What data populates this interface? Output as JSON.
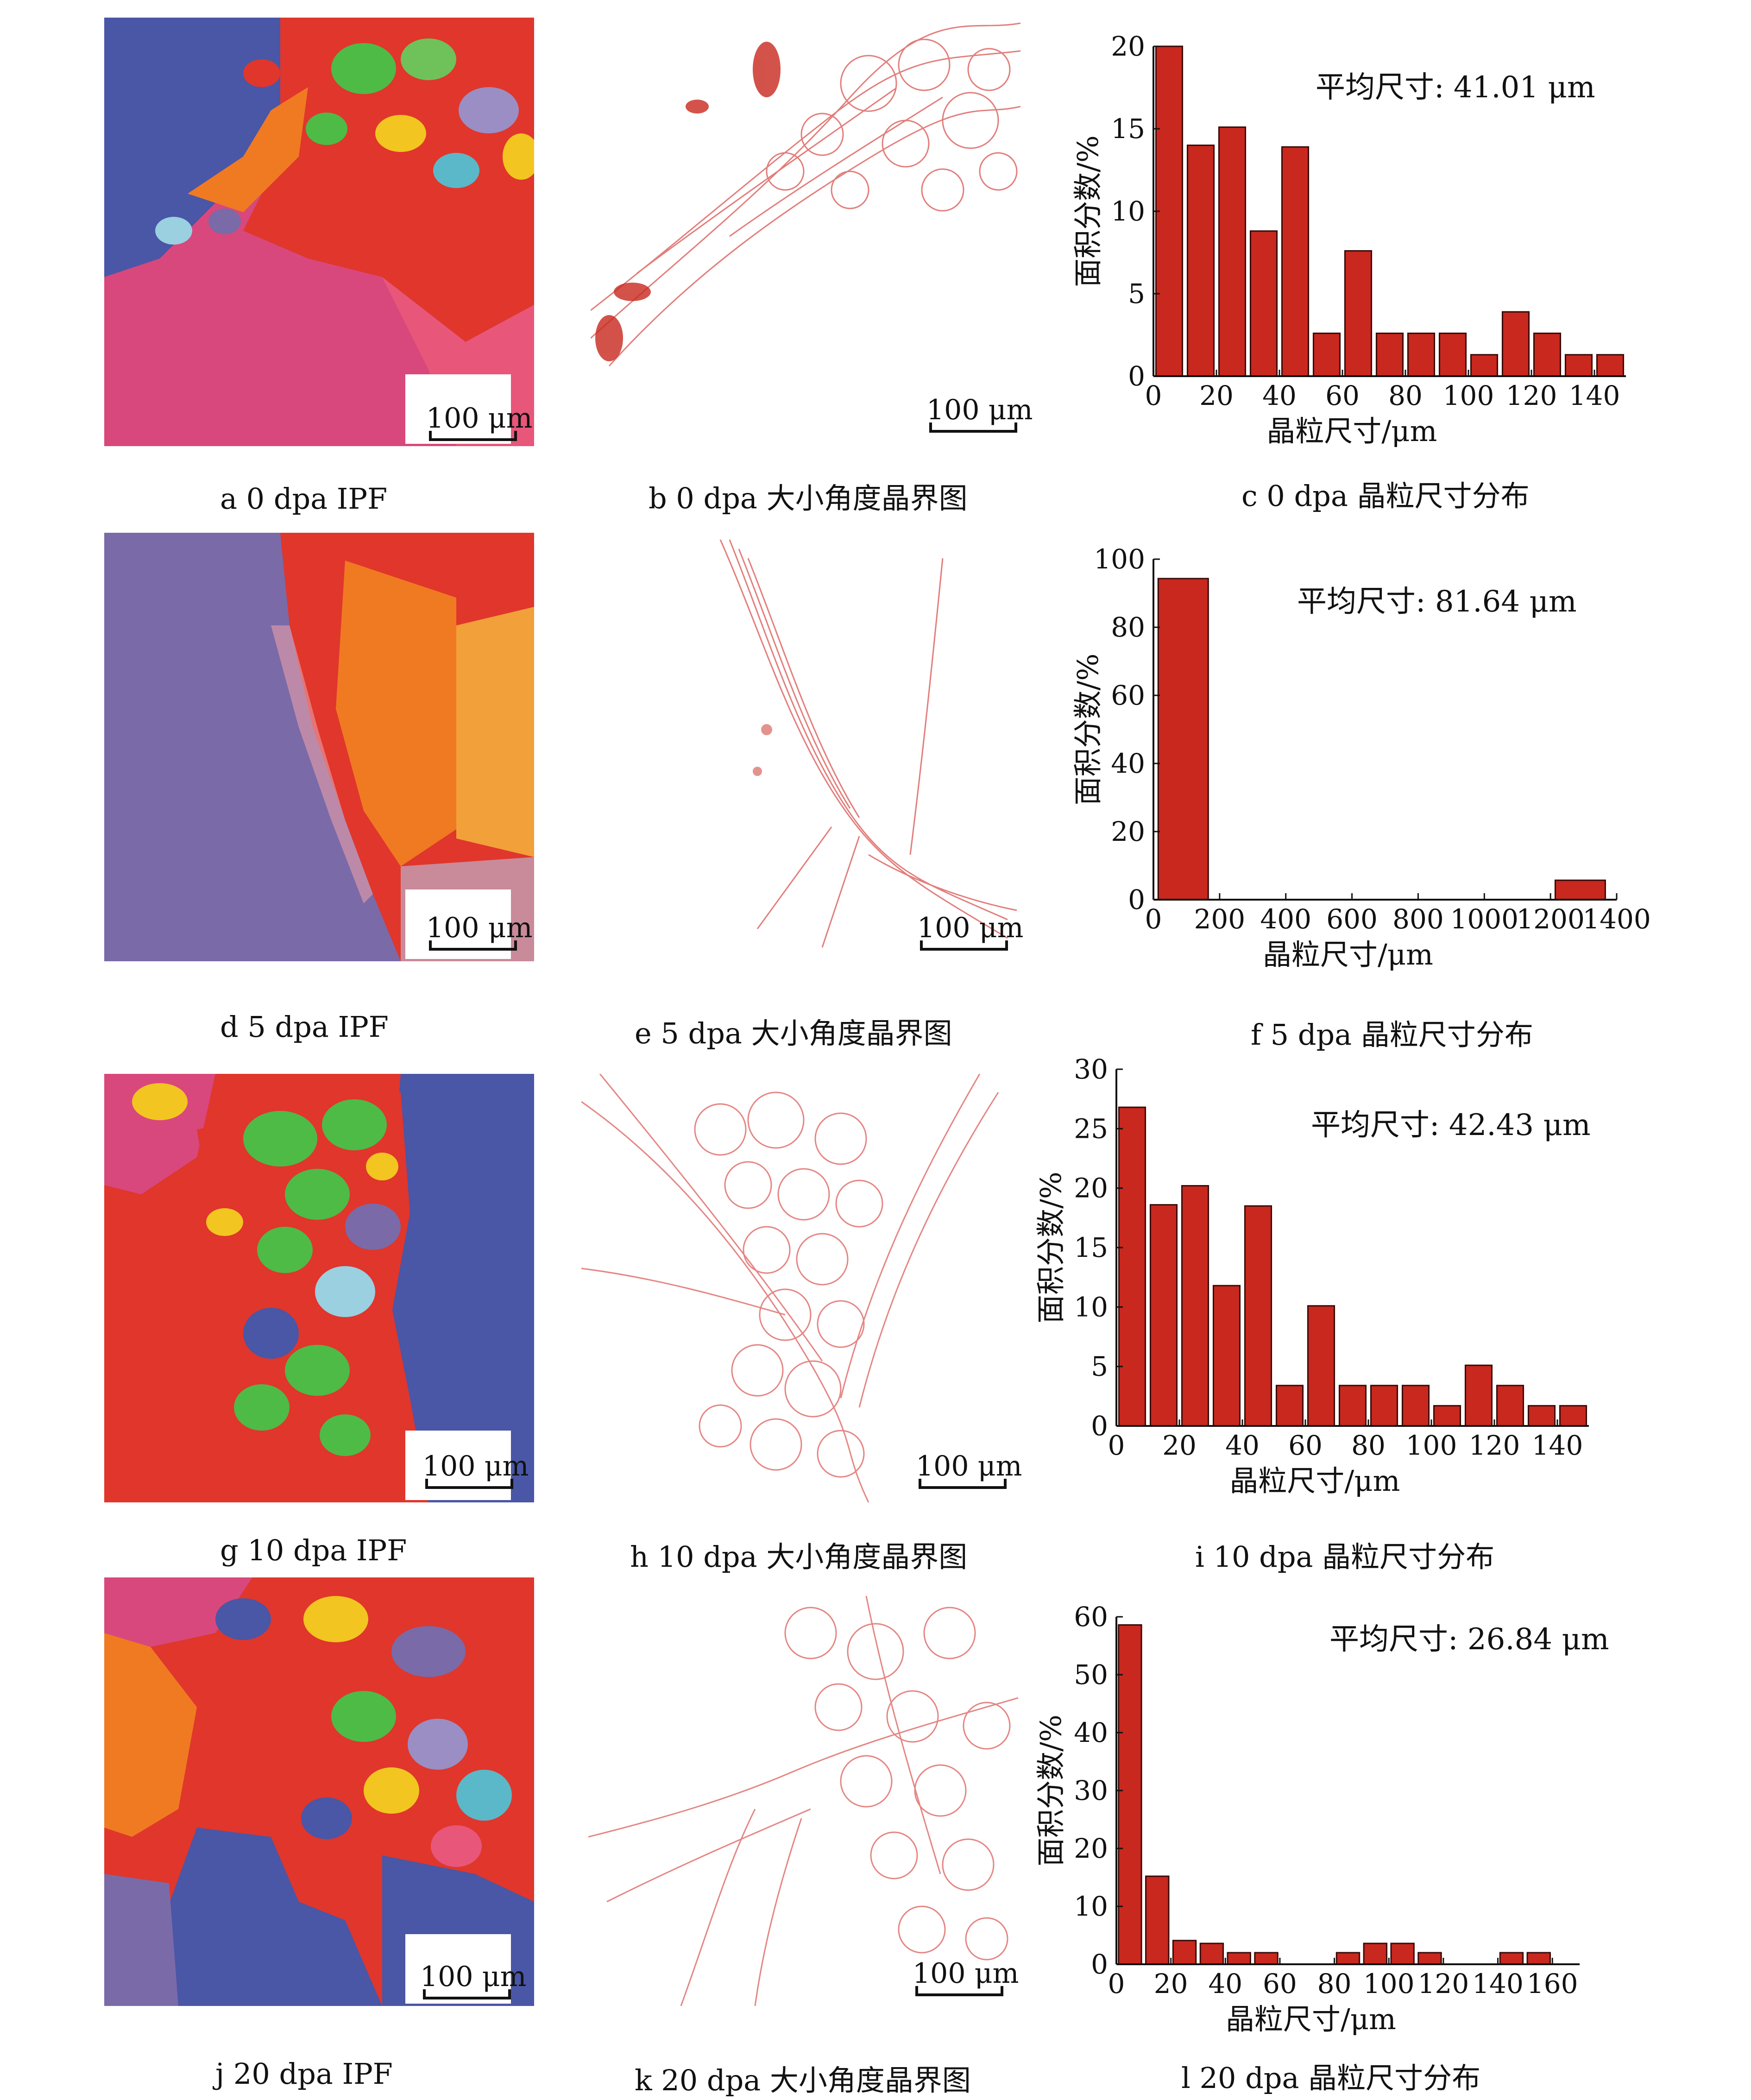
{
  "captions": {
    "a": "a  0 dpa IPF",
    "b": "b  0 dpa 大小角度晶界图",
    "c": "c  0 dpa 晶粒尺寸分布",
    "d": "d  5 dpa IPF",
    "e": "e  5 dpa 大小角度晶界图",
    "f": "f  5 dpa 晶粒尺寸分布",
    "g": "g  10 dpa IPF",
    "h": "h  10 dpa 大小角度晶界图",
    "i": "i  10 dpa 晶粒尺寸分布",
    "j": "j  20 dpa IPF",
    "k": "k  20 dpa 大小角度晶界图",
    "l": "l  20 dpa 晶粒尺寸分布"
  },
  "scale_label": "100 μm",
  "colors": {
    "bar_fill": "#c8281e",
    "bar_stroke": "#3a0a08",
    "gb_line": "#d9534f",
    "ipf_red": "#e0362c",
    "ipf_pink": "#d8487c",
    "ipf_blue": "#4a56a6",
    "ipf_purple": "#7a6aa8",
    "ipf_green": "#4dbb46",
    "ipf_orange": "#f07a22",
    "ipf_yellow": "#f2c520"
  },
  "chart_data": [
    {
      "id": "c",
      "type": "bar",
      "title": "",
      "annotation": "平均尺寸: 41.01 μm",
      "xlabel": "晶粒尺寸/μm",
      "ylabel": "面积分数/%",
      "xlim": [
        0,
        150
      ],
      "ylim": [
        0,
        20
      ],
      "xticks": [
        0,
        20,
        40,
        60,
        80,
        100,
        120,
        140
      ],
      "yticks": [
        0,
        5,
        10,
        15,
        20
      ],
      "bin_width": 10,
      "x": [
        0,
        10,
        20,
        30,
        40,
        50,
        60,
        70,
        80,
        90,
        100,
        110,
        120,
        130,
        140
      ],
      "values": [
        20,
        14,
        15.1,
        8.8,
        13.9,
        2.6,
        7.6,
        2.6,
        2.6,
        2.6,
        1.3,
        3.9,
        2.6,
        1.3,
        1.3
      ]
    },
    {
      "id": "f",
      "type": "bar",
      "title": "",
      "annotation": "平均尺寸: 81.64 μm",
      "xlabel": "晶粒尺寸/μm",
      "ylabel": "面积分数/%",
      "xlim": [
        0,
        1400
      ],
      "ylim": [
        0,
        100
      ],
      "xticks": [
        0,
        200,
        400,
        600,
        800,
        1000,
        1200,
        1400
      ],
      "yticks": [
        0,
        20,
        40,
        60,
        80,
        100
      ],
      "bin_width": 180,
      "x": [
        0,
        1200
      ],
      "values": [
        94.3,
        5.7
      ]
    },
    {
      "id": "i",
      "type": "bar",
      "title": "",
      "annotation": "平均尺寸: 42.43 μm",
      "xlabel": "晶粒尺寸/μm",
      "ylabel": "面积分数/%",
      "xlim": [
        0,
        150
      ],
      "ylim": [
        0,
        30
      ],
      "xticks": [
        0,
        20,
        40,
        60,
        80,
        100,
        120,
        140
      ],
      "yticks": [
        0,
        5,
        10,
        15,
        20,
        25,
        30
      ],
      "bin_width": 10,
      "x": [
        0,
        10,
        20,
        30,
        40,
        50,
        60,
        70,
        80,
        90,
        100,
        110,
        120,
        130,
        140
      ],
      "values": [
        26.8,
        18.6,
        20.2,
        11.8,
        18.5,
        3.4,
        10.1,
        3.4,
        3.4,
        3.4,
        1.7,
        5.1,
        3.4,
        1.7,
        1.7
      ]
    },
    {
      "id": "l",
      "type": "bar",
      "title": "",
      "annotation": "平均尺寸: 26.84 μm",
      "xlabel": "晶粒尺寸/μm",
      "ylabel": "面积分数/%",
      "xlim": [
        0,
        170
      ],
      "ylim": [
        0,
        60
      ],
      "xticks": [
        0,
        20,
        40,
        60,
        80,
        100,
        120,
        140,
        160
      ],
      "yticks": [
        0,
        10,
        20,
        30,
        40,
        50,
        60
      ],
      "bin_width": 10,
      "x": [
        0,
        10,
        20,
        30,
        40,
        50,
        60,
        70,
        80,
        90,
        100,
        110,
        120,
        130,
        140,
        150
      ],
      "values": [
        58.6,
        15.2,
        4.1,
        3.6,
        2,
        2,
        0,
        0,
        2,
        3.6,
        3.6,
        2,
        0,
        0,
        2,
        2
      ]
    }
  ]
}
